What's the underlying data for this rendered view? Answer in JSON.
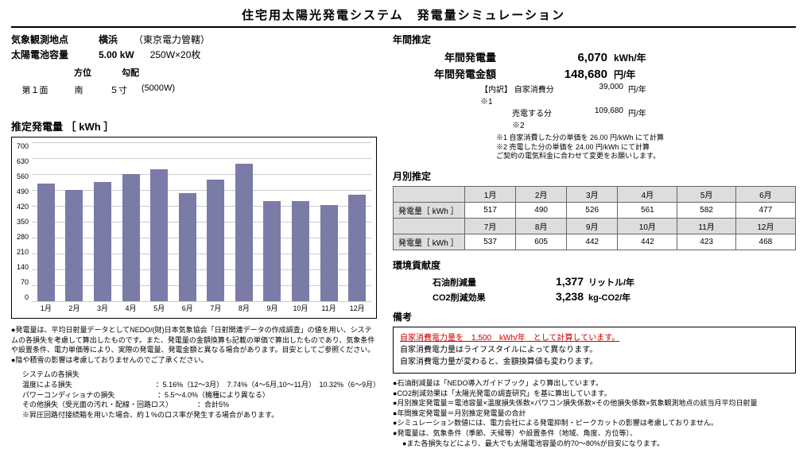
{
  "title": "住宅用太陽光発電システム　発電量シミュレーション",
  "location": {
    "label": "気象観測地点",
    "value": "横浜",
    "sub": "（東京電力管轄）"
  },
  "capacity": {
    "label": "太陽電池容量",
    "value": "5.00 kW",
    "sub": "250W×20枚"
  },
  "face": {
    "head_dir": "方位",
    "head_slope": "勾配",
    "name": "第１面",
    "dir": "南",
    "slope": "５寸",
    "watt": "(5000W)"
  },
  "chart": {
    "title": "推定発電量 ［ kWh ］",
    "ymax": 700,
    "ytick": 70,
    "months": [
      "1月",
      "2月",
      "3月",
      "4月",
      "5月",
      "6月",
      "7月",
      "8月",
      "9月",
      "10月",
      "11月",
      "12月"
    ],
    "values": [
      517,
      490,
      526,
      561,
      582,
      477,
      537,
      605,
      442,
      442,
      423,
      468
    ],
    "bar_color": "#7b7ba8",
    "grid_color": "#cccccc"
  },
  "left_notes": {
    "n1": "発電量は、平均日射量データとしてNEDO/(財)日本気象協会「日射関連データの作成調査」の値を用い、システムの各損失を考慮して算出したものです。また、発電量の金額換算も記載の単価で算出したものであり、気象条件や設置条件、電力単価等により、実際の発電量、発電金額と異なる場合があります。目安としてご参照ください。",
    "n2": "陰や積雪の影響は考慮しておりませんのでご了承ください。",
    "loss_title": "システムの各損失",
    "l1a": "温度による損失",
    "l1b": "：5.16%（12～3月）　7.74%（4～5月,10～11月）　10.32%（6～9月）",
    "l2a": "パワーコンディショナの損失",
    "l2b": "：5.5～4.0%（機種により異なる）",
    "l3a": "その他損失（受光面の汚れ・配線・回路ロス）",
    "l3b": "：合計5%",
    "l4": "※昇圧回路付接続箱を用いた場合、約１%のロス率が発生する場合があります。"
  },
  "annual": {
    "title": "年間推定",
    "gen_lbl": "年間発電量",
    "gen_val": "6,070",
    "gen_unit": "kWh/年",
    "amt_lbl": "年間発電金額",
    "amt_val": "148,680",
    "amt_unit": "円/年",
    "bd_title": "【内訳】",
    "bd1_lbl": "自家消費分　※1",
    "bd1_val": "39,000",
    "bd1_unit": "円/年",
    "bd2_lbl": "売電する分　※2",
    "bd2_val": "109,680",
    "bd2_unit": "円/年",
    "f1": "※1 自家消費した分の単価を 26.00 円/kWh にて計算",
    "f2": "※2 売電した分の単価を 24.00 円/kWh にて計算",
    "f3": "ご契約の電気料金に合わせて変更をお願いします。"
  },
  "monthly": {
    "title": "月別推定",
    "row_label": "発電量［ kWh ］",
    "m1": [
      "1月",
      "2月",
      "3月",
      "4月",
      "5月",
      "6月"
    ],
    "v1": [
      "517",
      "490",
      "526",
      "561",
      "582",
      "477"
    ],
    "m2": [
      "7月",
      "8月",
      "9月",
      "10月",
      "11月",
      "12月"
    ],
    "v2": [
      "537",
      "605",
      "442",
      "442",
      "423",
      "468"
    ]
  },
  "env": {
    "title": "環境貢献度",
    "oil_lbl": "石油削減量",
    "oil_val": "1,377",
    "oil_unit": "リットル/年",
    "co2_lbl": "CO2削減効果",
    "co2_val": "3,238",
    "co2_unit": "kg-CO2/年"
  },
  "remarks": {
    "title": "備考",
    "hl": "自家消費電力量を　1,500　kWh/年　として計算しています。",
    "r1": "自家消費電力量はライフスタイルによって異なります。",
    "r2": "自家消費電力量が変わると、金額換算値も変わります。"
  },
  "right_notes": {
    "n1": "石油削減量は「NEDO導入ガイドブック」より算出しています。",
    "n2": "CO2削減効果は「太陽光発電の調査研究」を基に算出しています。",
    "n3": "月別推定発電量＝電池容量×温度損失係数×パワコン損失係数×その他損失係数×気象観測地点の該当月平均日射量",
    "n4": "年間推定発電量＝月別推定発電量の合計",
    "n5": "シミュレーション数値には、電力会社による発電抑制・ピークカットの影響は考慮しておりません。",
    "n6": "発電量は、気象条件（季節、天候等）や設置条件（地域、角度、方位等）、",
    "n6b": "また各損失などにより、最大でも太陽電池容量の約70～80%が目安になります。"
  }
}
